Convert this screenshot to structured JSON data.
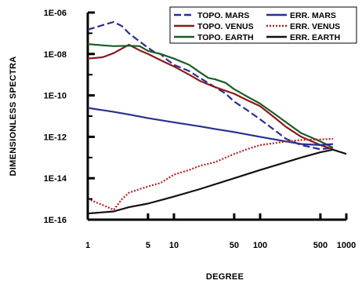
{
  "chart_data": {
    "type": "line",
    "xlabel": "DEGREE",
    "ylabel": "DIMENSIONLESS SPECTRA",
    "x_scale": "log",
    "y_scale": "log",
    "xlim": [
      1,
      1000
    ],
    "ylim": [
      1e-16,
      1e-06
    ],
    "x_ticks": [
      {
        "value": 1,
        "label": "1"
      },
      {
        "value": 5,
        "label": "5"
      },
      {
        "value": 10,
        "label": "10"
      },
      {
        "value": 50,
        "label": "50"
      },
      {
        "value": 100,
        "label": "100"
      },
      {
        "value": 500,
        "label": "500"
      },
      {
        "value": 1000,
        "label": "1000"
      }
    ],
    "y_ticks": [
      {
        "value": 1e-06,
        "label": "1E-06"
      },
      {
        "value": 1e-08,
        "label": "1E-08"
      },
      {
        "value": 1e-10,
        "label": "1E-10"
      },
      {
        "value": 1e-12,
        "label": "1E-12"
      },
      {
        "value": 1e-14,
        "label": "1E-14"
      },
      {
        "value": 1e-16,
        "label": "1E-16"
      }
    ],
    "grid": false,
    "legend_position": "top-right",
    "series": [
      {
        "name": "TOPO. MARS",
        "color": "#2a2f8f",
        "dash": "long-dash",
        "points": [
          [
            1,
            1.5e-07
          ],
          [
            1.5,
            2.5e-07
          ],
          [
            2,
            3.5e-07
          ],
          [
            2.5,
            2.2e-07
          ],
          [
            3,
            1e-07
          ],
          [
            4,
            4e-08
          ],
          [
            5,
            2e-08
          ],
          [
            6,
            1.2e-08
          ],
          [
            7,
            1e-08
          ],
          [
            8,
            6e-09
          ],
          [
            10,
            3e-09
          ],
          [
            15,
            1.5e-09
          ],
          [
            20,
            7e-10
          ],
          [
            30,
            2.5e-10
          ],
          [
            40,
            1.2e-10
          ],
          [
            50,
            5e-11
          ],
          [
            70,
            2e-11
          ],
          [
            100,
            7e-12
          ],
          [
            150,
            2e-12
          ],
          [
            200,
            8e-13
          ],
          [
            300,
            4e-13
          ],
          [
            500,
            2.5e-13
          ],
          [
            700,
            3e-13
          ]
        ]
      },
      {
        "name": "TOPO. VENUS",
        "color": "#8a1a1a",
        "dash": "solid",
        "points": [
          [
            1,
            6e-09
          ],
          [
            1.5,
            7e-09
          ],
          [
            2,
            1.1e-08
          ],
          [
            3,
            2.8e-08
          ],
          [
            4,
            1.5e-08
          ],
          [
            5,
            1e-08
          ],
          [
            7,
            5e-09
          ],
          [
            10,
            2.5e-09
          ],
          [
            15,
            1e-09
          ],
          [
            20,
            5e-10
          ],
          [
            30,
            2.5e-10
          ],
          [
            50,
            1.2e-10
          ],
          [
            70,
            6e-11
          ],
          [
            100,
            3e-11
          ],
          [
            150,
            8e-12
          ],
          [
            200,
            3e-12
          ],
          [
            300,
            1e-12
          ],
          [
            500,
            4e-13
          ],
          [
            700,
            2.5e-13
          ]
        ]
      },
      {
        "name": "TOPO. EARTH",
        "color": "#1a5c2a",
        "dash": "solid",
        "points": [
          [
            1,
            3e-08
          ],
          [
            1.5,
            2.6e-08
          ],
          [
            2,
            2.4e-08
          ],
          [
            3,
            2.5e-08
          ],
          [
            4,
            2.4e-08
          ],
          [
            5,
            1.4e-08
          ],
          [
            7,
            1e-08
          ],
          [
            10,
            6e-09
          ],
          [
            15,
            3e-09
          ],
          [
            20,
            1.3e-09
          ],
          [
            25,
            7e-10
          ],
          [
            30,
            6e-10
          ],
          [
            40,
            4e-10
          ],
          [
            50,
            2e-10
          ],
          [
            70,
            9e-11
          ],
          [
            100,
            4e-11
          ],
          [
            150,
            1.2e-11
          ],
          [
            200,
            5e-12
          ],
          [
            300,
            1.5e-12
          ],
          [
            500,
            6e-13
          ],
          [
            700,
            3e-13
          ]
        ]
      },
      {
        "name": "ERR. MARS",
        "color": "#2a2f8f",
        "dash": "solid",
        "points": [
          [
            1,
            2.5e-11
          ],
          [
            2,
            1.6e-11
          ],
          [
            3,
            1.2e-11
          ],
          [
            5,
            8e-12
          ],
          [
            10,
            5e-12
          ],
          [
            20,
            3.2e-12
          ],
          [
            30,
            2.4e-12
          ],
          [
            50,
            1.7e-12
          ],
          [
            100,
            1e-12
          ],
          [
            200,
            6e-13
          ],
          [
            300,
            4.5e-13
          ],
          [
            500,
            4e-13
          ],
          [
            700,
            4.5e-13
          ]
        ]
      },
      {
        "name": "ERR. VENUS",
        "color": "#b02020",
        "dash": "dotted",
        "points": [
          [
            1,
            1e-15
          ],
          [
            1.5,
            5e-16
          ],
          [
            2,
            3e-16
          ],
          [
            2.5,
            1e-15
          ],
          [
            3,
            2e-15
          ],
          [
            4,
            3e-15
          ],
          [
            5,
            4e-15
          ],
          [
            7,
            6e-15
          ],
          [
            10,
            1.5e-14
          ],
          [
            15,
            2.5e-14
          ],
          [
            20,
            4e-14
          ],
          [
            30,
            6e-14
          ],
          [
            50,
            1.5e-13
          ],
          [
            70,
            2.5e-13
          ],
          [
            100,
            4e-13
          ],
          [
            150,
            5e-13
          ],
          [
            200,
            6e-13
          ],
          [
            300,
            7e-13
          ],
          [
            500,
            7.5e-13
          ],
          [
            700,
            8e-13
          ]
        ]
      },
      {
        "name": "ERR. EARTH",
        "color": "#111111",
        "dash": "solid",
        "points": [
          [
            1,
            2e-16
          ],
          [
            2,
            2.5e-16
          ],
          [
            3,
            4e-16
          ],
          [
            5,
            6e-16
          ],
          [
            10,
            1.3e-15
          ],
          [
            20,
            3e-15
          ],
          [
            50,
            1e-14
          ],
          [
            100,
            2.5e-14
          ],
          [
            200,
            6e-14
          ],
          [
            300,
            1e-13
          ],
          [
            500,
            1.8e-13
          ],
          [
            700,
            2.4e-13
          ],
          [
            1000,
            1.5e-13
          ]
        ]
      }
    ]
  }
}
